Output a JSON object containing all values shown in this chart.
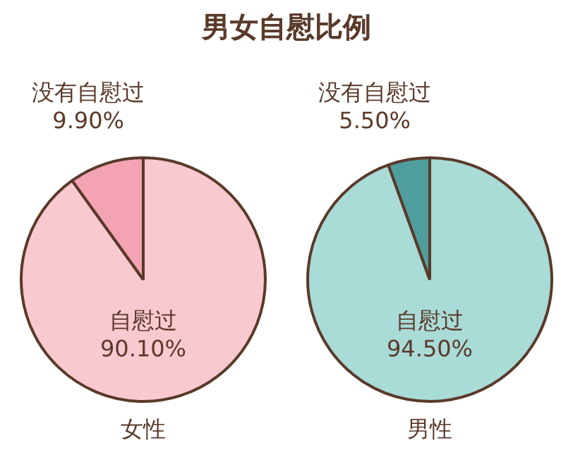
{
  "chart_data": [
    {
      "type": "pie",
      "title": "男女自慰比例",
      "xlabel": "女性",
      "categories": [
        "自慰过",
        "没有自慰过"
      ],
      "values": [
        90.1,
        9.9
      ],
      "value_labels": [
        "90.10%",
        "9.90%"
      ],
      "colors": [
        "#f9c9d0",
        "#f3a3b1"
      ],
      "legend": false
    },
    {
      "type": "pie",
      "xlabel": "男性",
      "categories": [
        "自慰过",
        "没有自慰过"
      ],
      "values": [
        94.5,
        5.5
      ],
      "value_labels": [
        "94.50%",
        "5.50%"
      ],
      "colors": [
        "#a9dbd7",
        "#4f9e9d"
      ],
      "legend": false
    }
  ]
}
